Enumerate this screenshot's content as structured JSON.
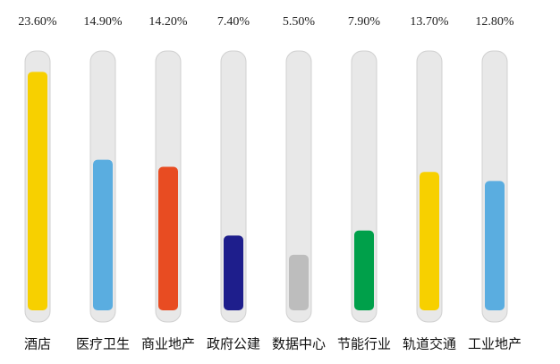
{
  "chart_data": {
    "type": "bar",
    "categories": [
      "酒店",
      "医疗卫生",
      "商业地产",
      "政府公建",
      "数据中心",
      "节能行业",
      "轨道交通",
      "工业地产"
    ],
    "values": [
      23.6,
      14.9,
      14.2,
      7.4,
      5.5,
      7.9,
      13.7,
      12.8
    ],
    "value_labels": [
      "23.60%",
      "14.90%",
      "14.20%",
      "7.40%",
      "5.50%",
      "7.90%",
      "13.70%",
      "12.80%"
    ],
    "colors": [
      "#f7d000",
      "#5aade0",
      "#e84c22",
      "#1e1e8c",
      "#bdbdbd",
      "#00a04a",
      "#f7d000",
      "#5aade0"
    ]
  }
}
